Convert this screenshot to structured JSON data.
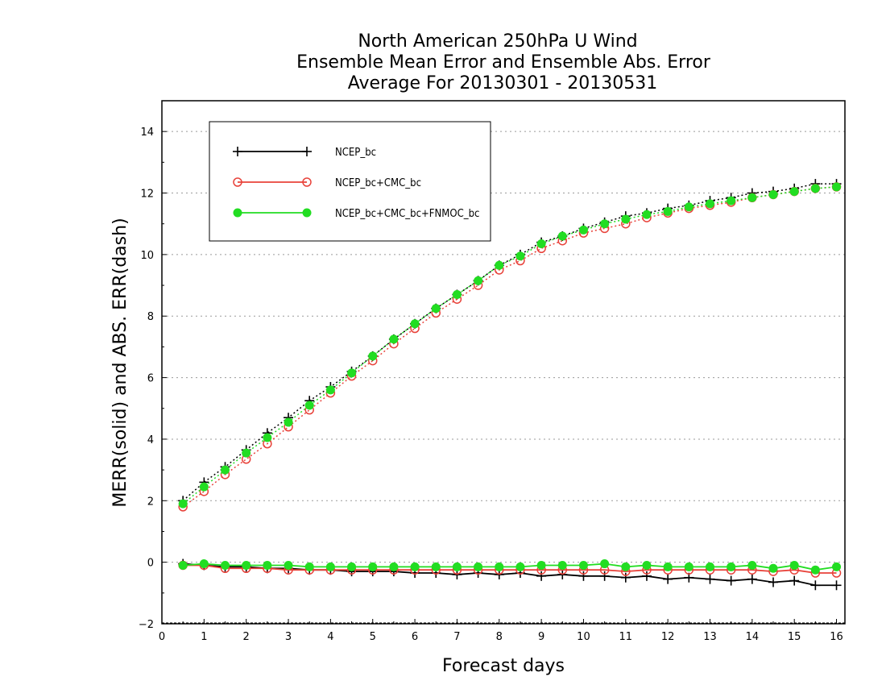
{
  "chart_data": {
    "type": "line",
    "title_lines": [
      "North American 250hPa U Wind",
      "Ensemble Mean Error and Ensemble Abs. Error",
      "Average For 20130301 - 20130531"
    ],
    "xlabel": "Forecast days",
    "ylabel": "MERR(solid) and ABS. ERR(dash)",
    "xlim": [
      0,
      16.2
    ],
    "ylim": [
      -2,
      15
    ],
    "xticks": [
      0,
      1,
      2,
      3,
      4,
      5,
      6,
      7,
      8,
      9,
      10,
      11,
      12,
      13,
      14,
      15,
      16
    ],
    "yticks": [
      -2,
      0,
      2,
      4,
      6,
      8,
      10,
      12,
      14
    ],
    "ygrid": [
      0,
      2,
      4,
      6,
      8,
      10,
      12,
      14
    ],
    "grid": "horizontal dotted",
    "legend_position": "top-left",
    "x": [
      0.5,
      1.0,
      1.5,
      2.0,
      2.5,
      3.0,
      3.5,
      4.0,
      4.5,
      5.0,
      5.5,
      6.0,
      6.5,
      7.0,
      7.5,
      8.0,
      8.5,
      9.0,
      9.5,
      10.0,
      10.5,
      11.0,
      11.5,
      12.0,
      12.5,
      13.0,
      13.5,
      14.0,
      14.5,
      15.0,
      15.5,
      16.0
    ],
    "series": [
      {
        "name": "NCEP_bc",
        "color": "#000000",
        "marker": "plus",
        "merr": [
          -0.05,
          -0.1,
          -0.15,
          -0.15,
          -0.2,
          -0.2,
          -0.25,
          -0.25,
          -0.3,
          -0.3,
          -0.3,
          -0.35,
          -0.35,
          -0.4,
          -0.35,
          -0.4,
          -0.35,
          -0.45,
          -0.4,
          -0.45,
          -0.45,
          -0.5,
          -0.45,
          -0.55,
          -0.5,
          -0.55,
          -0.6,
          -0.55,
          -0.65,
          -0.6,
          -0.75,
          -0.75
        ],
        "abs_err": [
          2.0,
          2.6,
          3.1,
          3.65,
          4.2,
          4.7,
          5.25,
          5.7,
          6.2,
          6.7,
          7.25,
          7.75,
          8.25,
          8.7,
          9.15,
          9.65,
          10.0,
          10.4,
          10.6,
          10.85,
          11.05,
          11.25,
          11.35,
          11.5,
          11.6,
          11.75,
          11.85,
          12.0,
          12.05,
          12.15,
          12.3,
          12.3
        ]
      },
      {
        "name": "NCEP_bc+CMC_bc",
        "color": "#e8423a",
        "marker": "open-circle",
        "merr": [
          -0.1,
          -0.1,
          -0.2,
          -0.2,
          -0.2,
          -0.25,
          -0.25,
          -0.25,
          -0.25,
          -0.25,
          -0.25,
          -0.25,
          -0.25,
          -0.25,
          -0.25,
          -0.25,
          -0.25,
          -0.25,
          -0.25,
          -0.25,
          -0.25,
          -0.3,
          -0.25,
          -0.25,
          -0.25,
          -0.25,
          -0.25,
          -0.25,
          -0.3,
          -0.25,
          -0.35,
          -0.35
        ],
        "abs_err": [
          1.8,
          2.3,
          2.85,
          3.35,
          3.85,
          4.4,
          4.95,
          5.5,
          6.05,
          6.55,
          7.1,
          7.6,
          8.1,
          8.55,
          9.0,
          9.5,
          9.8,
          10.2,
          10.45,
          10.7,
          10.85,
          11.0,
          11.2,
          11.35,
          11.5,
          11.6,
          11.7,
          11.85,
          11.95,
          12.05,
          12.15,
          12.2
        ]
      },
      {
        "name": "NCEP_bc+CMC_bc+FNMOC_bc",
        "color": "#22dd22",
        "marker": "filled-circle",
        "merr": [
          -0.1,
          -0.05,
          -0.1,
          -0.1,
          -0.1,
          -0.1,
          -0.15,
          -0.15,
          -0.15,
          -0.15,
          -0.15,
          -0.15,
          -0.15,
          -0.15,
          -0.15,
          -0.15,
          -0.15,
          -0.1,
          -0.1,
          -0.1,
          -0.05,
          -0.15,
          -0.1,
          -0.15,
          -0.15,
          -0.15,
          -0.15,
          -0.1,
          -0.2,
          -0.1,
          -0.25,
          -0.15
        ],
        "abs_err": [
          1.9,
          2.45,
          3.0,
          3.55,
          4.05,
          4.55,
          5.1,
          5.6,
          6.15,
          6.7,
          7.25,
          7.75,
          8.25,
          8.7,
          9.15,
          9.65,
          9.95,
          10.35,
          10.6,
          10.8,
          11.0,
          11.15,
          11.3,
          11.4,
          11.55,
          11.65,
          11.75,
          11.85,
          11.95,
          12.05,
          12.15,
          12.2
        ]
      }
    ]
  }
}
